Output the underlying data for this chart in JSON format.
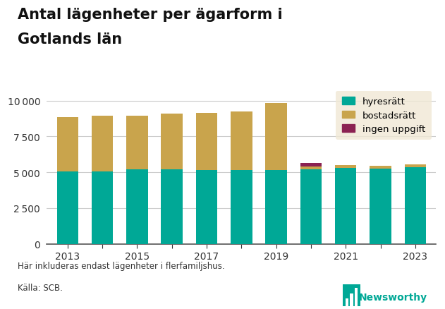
{
  "title_line1": "Antal lägenheter per ägarform i",
  "title_line2": "Gotlands län",
  "years": [
    2013,
    2014,
    2015,
    2016,
    2017,
    2018,
    2019,
    2020,
    2021,
    2022,
    2023
  ],
  "hyresratt": [
    5050,
    5080,
    5200,
    5200,
    5150,
    5180,
    5150,
    5220,
    5300,
    5250,
    5350
  ],
  "bostadsratt": [
    3800,
    3870,
    3750,
    3870,
    3970,
    4050,
    4680,
    200,
    200,
    200,
    200
  ],
  "ingen_uppgift": [
    0,
    0,
    0,
    0,
    0,
    0,
    0,
    250,
    0,
    0,
    0
  ],
  "color_hyresratt": "#00A896",
  "color_bostadsratt": "#C9A44C",
  "color_ingen_uppgift": "#8B2252",
  "color_legend_bg": "#F0E8D5",
  "footnote": "Här inkluderas endast lägenheter i flerfamiljshus.",
  "source": "Källa: SCB.",
  "yticks": [
    0,
    2500,
    5000,
    7500,
    10000
  ],
  "ylim_max": 10800,
  "background_color": "#FFFFFF",
  "grid_color": "#CCCCCC",
  "show_xtick_years": [
    2013,
    2015,
    2017,
    2019,
    2021,
    2023
  ]
}
